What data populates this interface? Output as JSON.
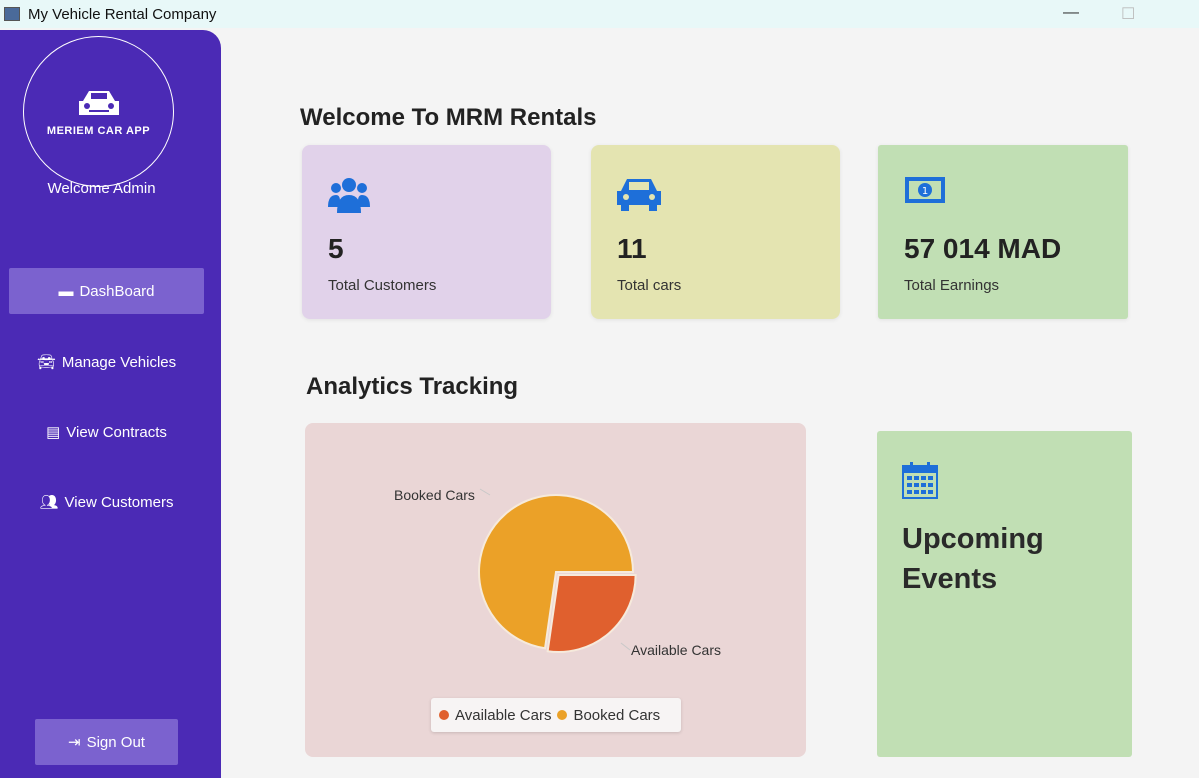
{
  "window": {
    "title": "My Vehicle Rental Company"
  },
  "sidebar": {
    "logo_text": "MERIEM CAR APP",
    "welcome": "Welcome Admin",
    "items": [
      {
        "label": "DashBoard",
        "icon": "archive-icon"
      },
      {
        "label": "Manage Vehicles",
        "icon": "car-icon"
      },
      {
        "label": "View Contracts",
        "icon": "file-icon"
      },
      {
        "label": "View Customers",
        "icon": "users-icon"
      }
    ],
    "signout": "Sign Out"
  },
  "main": {
    "title": "Welcome To MRM Rentals",
    "cards": [
      {
        "value": "5",
        "label": "Total Customers",
        "color": "#e1d2ea"
      },
      {
        "value": "11",
        "label": "Total cars",
        "color": "#e4e4b1"
      },
      {
        "value": "57 014 MAD",
        "label": "Total Earnings",
        "color": "#c1dfb4"
      }
    ],
    "analytics_title": "Analytics Tracking",
    "events_title": "Upcoming Events"
  },
  "chart_data": {
    "type": "pie",
    "categories": [
      "Available Cars",
      "Booked Cars"
    ],
    "values": [
      3,
      8
    ],
    "colors": [
      "#e0602e",
      "#eba128"
    ],
    "legend": "bottom"
  }
}
